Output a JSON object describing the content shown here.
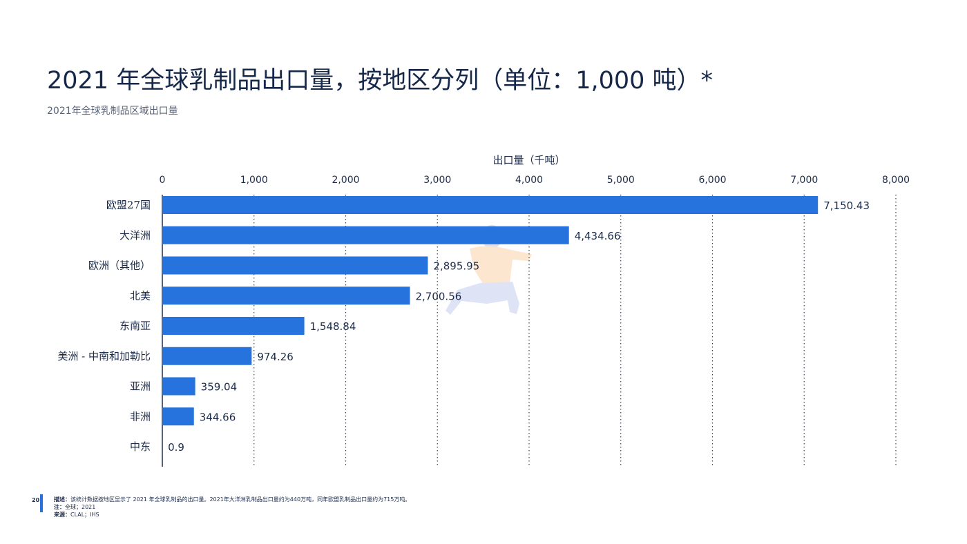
{
  "header": {
    "title": "2021 年全球乳制品出口量，按地区分列（单位：1,000 吨）*",
    "subtitle": "2021年全球乳制品区域出口量"
  },
  "colors": {
    "bar": "#2673dd",
    "grid": "#3a4050",
    "text": "#1c2b4a",
    "accent": "#2673dd"
  },
  "chart_data": {
    "type": "bar",
    "orientation": "horizontal",
    "title": "",
    "xlabel": "出口量（千吨）",
    "ylabel": "",
    "xlim": [
      0,
      8000
    ],
    "xticks": [
      0,
      1000,
      2000,
      3000,
      4000,
      5000,
      6000,
      7000,
      8000
    ],
    "xtick_labels": [
      "0",
      "1,000",
      "2,000",
      "3,000",
      "4,000",
      "5,000",
      "6,000",
      "7,000",
      "8,000"
    ],
    "x_axis_position": "top",
    "grid": "vertical-dotted",
    "categories": [
      "欧盟27国",
      "大洋洲",
      "欧洲（其他）",
      "北美",
      "东南亚",
      "美洲 - 中南和加勒比",
      "亚洲",
      "非洲",
      "中东"
    ],
    "values": [
      7150.43,
      4434.66,
      2895.95,
      2700.56,
      1548.84,
      974.26,
      359.04,
      344.66,
      0.9
    ],
    "value_labels": [
      "7,150.43",
      "4,434.66",
      "2,895.95",
      "2,700.56",
      "1,548.84",
      "974.26",
      "359.04",
      "344.66",
      "0.9"
    ]
  },
  "footer": {
    "page_number": "20",
    "desc_label": "描述：",
    "desc_text": "该统计数据按地区显示了 2021 年全球乳制品的出口量。2021年大洋洲乳制品出口量约为440万吨，同年欧盟乳制品出口量约为715万吨。",
    "note_label": "注：",
    "note_text": "全球；2021",
    "source_label": "来源：",
    "source_text": "CLAL；IHS"
  }
}
